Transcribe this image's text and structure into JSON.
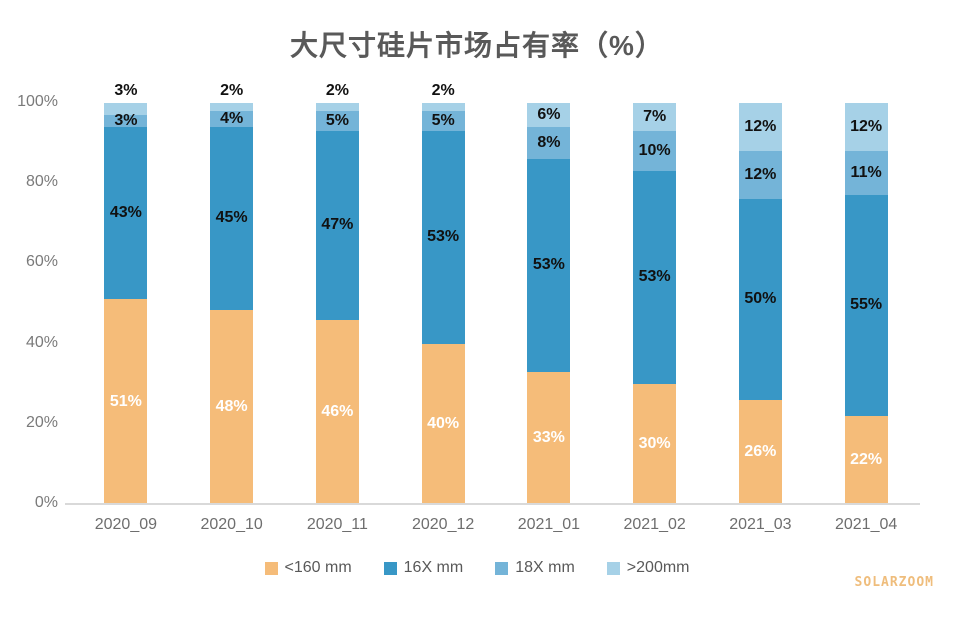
{
  "watermark": "SOLARZOOM",
  "chart_data": {
    "type": "bar",
    "variant": "stacked-100",
    "title": "大尺寸硅片市场占有率（%）",
    "categories": [
      "2020_09",
      "2020_10",
      "2020_11",
      "2020_12",
      "2021_01",
      "2021_02",
      "2021_03",
      "2021_04"
    ],
    "series": [
      {
        "name": "<160 mm",
        "color": "#F5BC79",
        "label_color": "#FFFFFF",
        "values": [
          51,
          48,
          46,
          40,
          33,
          30,
          26,
          22
        ]
      },
      {
        "name": "16X mm",
        "color": "#3897C6",
        "label_color": "#111111",
        "values": [
          43,
          45,
          47,
          53,
          53,
          53,
          50,
          55
        ]
      },
      {
        "name": "18X mm",
        "color": "#74B4D8",
        "label_color": "#111111",
        "values": [
          3,
          4,
          5,
          5,
          8,
          10,
          12,
          11
        ]
      },
      {
        "name": ">200mm",
        "color": "#A6D1E7",
        "label_color": "#111111",
        "values": [
          3,
          2,
          2,
          2,
          6,
          7,
          12,
          12
        ]
      }
    ],
    "ylim": [
      0,
      100
    ],
    "yticks": [
      0,
      20,
      40,
      60,
      80,
      100
    ],
    "ytick_format": "{v}%",
    "data_label_format": "{v}%",
    "grid": false,
    "legend_position": "bottom",
    "axis_color": "#D9D9D9",
    "tick_label_color": "#7A7A7A",
    "title_color": "#595959"
  }
}
